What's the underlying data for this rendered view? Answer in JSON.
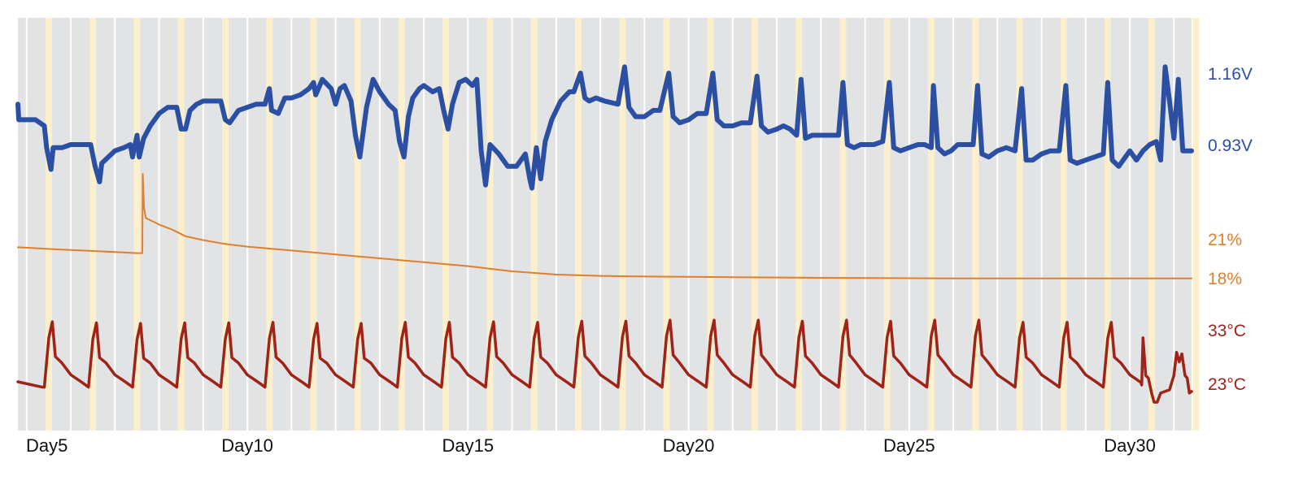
{
  "chart_data": {
    "type": "line",
    "title": "",
    "xlabel": "",
    "x_ticks": [
      "Day5",
      "Day10",
      "Day15",
      "Day20",
      "Day25",
      "Day30"
    ],
    "x_tick_values": [
      5,
      10,
      15,
      20,
      25,
      30
    ],
    "x_range": [
      4.8,
      31.4
    ],
    "grid": true,
    "legend": "none",
    "background_color": "#e2e3e5",
    "daylight_band_color": "#fbefcc",
    "series": [
      {
        "key": "voltage",
        "color": "#2a4fa3",
        "axis_labels": [
          "1.16V",
          "0.93V"
        ],
        "axis_label_values": [
          1.16,
          0.93
        ],
        "points": [
          [
            4.8,
            1.06
          ],
          [
            4.82,
            1.01
          ],
          [
            5.0,
            1.01
          ],
          [
            5.2,
            1.01
          ],
          [
            5.4,
            0.99
          ],
          [
            5.45,
            0.92
          ],
          [
            5.55,
            0.85
          ],
          [
            5.6,
            0.92
          ],
          [
            5.8,
            0.92
          ],
          [
            6.0,
            0.93
          ],
          [
            6.2,
            0.93
          ],
          [
            6.45,
            0.93
          ],
          [
            6.55,
            0.86
          ],
          [
            6.65,
            0.81
          ],
          [
            6.7,
            0.87
          ],
          [
            6.85,
            0.89
          ],
          [
            7.0,
            0.91
          ],
          [
            7.2,
            0.92
          ],
          [
            7.35,
            0.93
          ],
          [
            7.4,
            0.89
          ],
          [
            7.5,
            0.96
          ],
          [
            7.55,
            0.89
          ],
          [
            7.65,
            0.95
          ],
          [
            7.8,
            0.99
          ],
          [
            8.0,
            1.03
          ],
          [
            8.2,
            1.05
          ],
          [
            8.4,
            1.05
          ],
          [
            8.5,
            0.98
          ],
          [
            8.6,
            0.98
          ],
          [
            8.7,
            1.04
          ],
          [
            8.85,
            1.06
          ],
          [
            9.0,
            1.07
          ],
          [
            9.4,
            1.07
          ],
          [
            9.5,
            1.01
          ],
          [
            9.6,
            1.0
          ],
          [
            9.8,
            1.04
          ],
          [
            10.0,
            1.05
          ],
          [
            10.2,
            1.06
          ],
          [
            10.4,
            1.06
          ],
          [
            10.5,
            1.11
          ],
          [
            10.55,
            1.04
          ],
          [
            10.7,
            1.03
          ],
          [
            10.85,
            1.08
          ],
          [
            11.0,
            1.08
          ],
          [
            11.2,
            1.09
          ],
          [
            11.4,
            1.11
          ],
          [
            11.5,
            1.13
          ],
          [
            11.55,
            1.09
          ],
          [
            11.7,
            1.14
          ],
          [
            11.9,
            1.11
          ],
          [
            12.0,
            1.06
          ],
          [
            12.1,
            1.11
          ],
          [
            12.2,
            1.12
          ],
          [
            12.35,
            1.07
          ],
          [
            12.45,
            0.96
          ],
          [
            12.55,
            0.89
          ],
          [
            12.7,
            1.05
          ],
          [
            12.85,
            1.14
          ],
          [
            13.0,
            1.1
          ],
          [
            13.1,
            1.08
          ],
          [
            13.2,
            1.06
          ],
          [
            13.35,
            1.04
          ],
          [
            13.45,
            0.94
          ],
          [
            13.55,
            0.89
          ],
          [
            13.65,
            1.02
          ],
          [
            13.75,
            1.08
          ],
          [
            13.9,
            1.11
          ],
          [
            14.0,
            1.12
          ],
          [
            14.2,
            1.1
          ],
          [
            14.35,
            1.11
          ],
          [
            14.45,
            1.04
          ],
          [
            14.55,
            0.98
          ],
          [
            14.65,
            1.06
          ],
          [
            14.8,
            1.13
          ],
          [
            14.95,
            1.14
          ],
          [
            15.1,
            1.12
          ],
          [
            15.2,
            1.14
          ],
          [
            15.3,
            0.91
          ],
          [
            15.4,
            0.8
          ],
          [
            15.5,
            0.93
          ],
          [
            15.7,
            0.9
          ],
          [
            15.9,
            0.86
          ],
          [
            16.1,
            0.86
          ],
          [
            16.3,
            0.9
          ],
          [
            16.4,
            0.82
          ],
          [
            16.45,
            0.79
          ],
          [
            16.55,
            0.92
          ],
          [
            16.65,
            0.82
          ],
          [
            16.75,
            0.94
          ],
          [
            16.9,
            1.01
          ],
          [
            17.1,
            1.07
          ],
          [
            17.3,
            1.1
          ],
          [
            17.4,
            1.1
          ],
          [
            17.55,
            1.16
          ],
          [
            17.65,
            1.08
          ],
          [
            17.75,
            1.07
          ],
          [
            17.9,
            1.08
          ],
          [
            18.1,
            1.07
          ],
          [
            18.4,
            1.06
          ],
          [
            18.55,
            1.18
          ],
          [
            18.65,
            1.05
          ],
          [
            18.8,
            1.02
          ],
          [
            19.0,
            1.02
          ],
          [
            19.2,
            1.04
          ],
          [
            19.35,
            1.04
          ],
          [
            19.55,
            1.16
          ],
          [
            19.65,
            1.02
          ],
          [
            19.8,
            1.0
          ],
          [
            20.0,
            1.01
          ],
          [
            20.2,
            1.03
          ],
          [
            20.4,
            1.03
          ],
          [
            20.55,
            1.16
          ],
          [
            20.65,
            1.01
          ],
          [
            20.8,
            0.99
          ],
          [
            21.0,
            0.99
          ],
          [
            21.2,
            1.0
          ],
          [
            21.4,
            1.0
          ],
          [
            21.55,
            1.15
          ],
          [
            21.65,
            0.99
          ],
          [
            21.8,
            0.97
          ],
          [
            22.0,
            0.98
          ],
          [
            22.15,
            0.99
          ],
          [
            22.3,
            0.98
          ],
          [
            22.45,
            0.96
          ],
          [
            22.55,
            1.14
          ],
          [
            22.65,
            0.95
          ],
          [
            22.8,
            0.96
          ],
          [
            23.0,
            0.96
          ],
          [
            23.2,
            0.96
          ],
          [
            23.4,
            0.96
          ],
          [
            23.5,
            1.13
          ],
          [
            23.6,
            0.93
          ],
          [
            23.75,
            0.92
          ],
          [
            23.9,
            0.93
          ],
          [
            24.2,
            0.93
          ],
          [
            24.4,
            0.94
          ],
          [
            24.55,
            1.13
          ],
          [
            24.65,
            0.92
          ],
          [
            24.8,
            0.91
          ],
          [
            25.0,
            0.92
          ],
          [
            25.2,
            0.93
          ],
          [
            25.35,
            0.93
          ],
          [
            25.5,
            0.92
          ],
          [
            25.55,
            1.12
          ],
          [
            25.65,
            0.92
          ],
          [
            25.8,
            0.9
          ],
          [
            25.95,
            0.91
          ],
          [
            26.1,
            0.93
          ],
          [
            26.3,
            0.93
          ],
          [
            26.45,
            0.93
          ],
          [
            26.55,
            1.12
          ],
          [
            26.65,
            0.9
          ],
          [
            26.8,
            0.89
          ],
          [
            27.0,
            0.91
          ],
          [
            27.2,
            0.92
          ],
          [
            27.4,
            0.91
          ],
          [
            27.55,
            1.11
          ],
          [
            27.65,
            0.88
          ],
          [
            27.8,
            0.88
          ],
          [
            28.0,
            0.9
          ],
          [
            28.2,
            0.91
          ],
          [
            28.4,
            0.91
          ],
          [
            28.55,
            1.12
          ],
          [
            28.65,
            0.88
          ],
          [
            28.8,
            0.87
          ],
          [
            29.0,
            0.88
          ],
          [
            29.2,
            0.89
          ],
          [
            29.4,
            0.9
          ],
          [
            29.5,
            1.13
          ],
          [
            29.6,
            0.88
          ],
          [
            29.75,
            0.86
          ],
          [
            29.85,
            0.88
          ],
          [
            30.0,
            0.91
          ],
          [
            30.15,
            0.88
          ],
          [
            30.3,
            0.91
          ],
          [
            30.45,
            0.93
          ],
          [
            30.6,
            0.94
          ],
          [
            30.7,
            0.88
          ],
          [
            30.8,
            1.18
          ],
          [
            30.9,
            1.07
          ],
          [
            31.0,
            0.95
          ],
          [
            31.1,
            1.14
          ],
          [
            31.2,
            0.91
          ],
          [
            31.4,
            0.91
          ]
        ]
      },
      {
        "key": "percent",
        "color": "#e07f2c",
        "axis_labels": [
          "21%",
          "18%"
        ],
        "axis_label_values": [
          21,
          18
        ],
        "points": [
          [
            4.8,
            20.35
          ],
          [
            5.6,
            20.2
          ],
          [
            6.6,
            20.05
          ],
          [
            7.5,
            19.9
          ],
          [
            7.62,
            19.9
          ],
          [
            7.63,
            26.0
          ],
          [
            7.66,
            23.4
          ],
          [
            7.7,
            22.6
          ],
          [
            8.0,
            22.1
          ],
          [
            8.3,
            21.7
          ],
          [
            8.6,
            21.2
          ],
          [
            9.0,
            20.9
          ],
          [
            9.5,
            20.6
          ],
          [
            10.0,
            20.4
          ],
          [
            11.0,
            20.1
          ],
          [
            12.0,
            19.8
          ],
          [
            13.0,
            19.5
          ],
          [
            14.0,
            19.2
          ],
          [
            15.0,
            18.9
          ],
          [
            16.0,
            18.5
          ],
          [
            17.0,
            18.25
          ],
          [
            18.0,
            18.15
          ],
          [
            19.0,
            18.1
          ],
          [
            21.0,
            18.05
          ],
          [
            23.0,
            18.0
          ],
          [
            26.0,
            17.95
          ],
          [
            29.0,
            17.95
          ],
          [
            31.4,
            17.95
          ]
        ]
      },
      {
        "key": "temperature",
        "color": "#a02318",
        "axis_labels": [
          "33°C",
          "23°C"
        ],
        "axis_label_values": [
          33,
          23
        ],
        "daily_peaks": [
          34.5,
          34.3,
          34.2,
          34.3,
          34.3,
          34.4,
          34.2,
          34.2,
          34.4,
          34.4,
          34.5,
          34.4,
          34.6,
          34.6,
          34.8,
          34.8,
          34.8,
          34.6,
          34.8,
          34.6,
          34.8,
          34.8,
          34.4,
          34.4,
          34.4
        ],
        "daily_baseline": 22.3,
        "ending_points": [
          [
            30.3,
            31.5
          ],
          [
            30.36,
            24.5
          ],
          [
            30.42,
            24.0
          ],
          [
            30.5,
            21.0
          ],
          [
            30.55,
            19.5
          ],
          [
            30.62,
            19.5
          ],
          [
            30.7,
            21.2
          ],
          [
            30.9,
            21.8
          ],
          [
            31.0,
            24.5
          ],
          [
            31.06,
            28.8
          ],
          [
            31.12,
            27.0
          ],
          [
            31.18,
            28.5
          ],
          [
            31.25,
            24.5
          ],
          [
            31.3,
            24.0
          ],
          [
            31.35,
            21.2
          ],
          [
            31.4,
            21.5
          ]
        ]
      }
    ]
  }
}
